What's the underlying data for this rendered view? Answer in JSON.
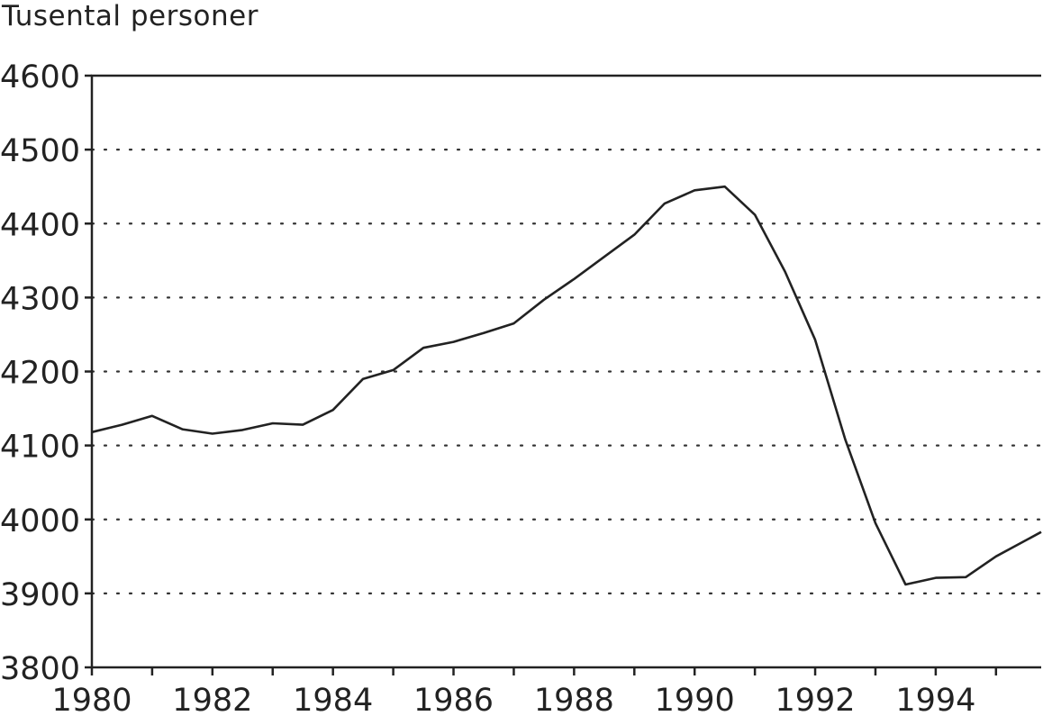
{
  "chart_data": {
    "type": "line",
    "title": "",
    "xlabel": "",
    "ylabel": "Tusental personer",
    "xlim": [
      1980,
      1995.75
    ],
    "ylim": [
      3800,
      4600
    ],
    "x_ticks": [
      1980,
      1982,
      1984,
      1986,
      1988,
      1990,
      1992,
      1994
    ],
    "x_tick_labels": [
      "1980",
      "1982",
      "1984",
      "1986",
      "1988",
      "1990",
      "1992",
      "1994"
    ],
    "y_ticks": [
      3800,
      3900,
      4000,
      4100,
      4200,
      4300,
      4400,
      4500,
      4600
    ],
    "y_tick_labels": [
      "3800",
      "3900",
      "4000",
      "4100",
      "4200",
      "4300",
      "4400",
      "4500",
      "4600"
    ],
    "grid": "horizontal dotted",
    "legend": "none",
    "series": [
      {
        "x": [
          1980.0,
          1980.5,
          1981.0,
          1981.5,
          1982.0,
          1982.5,
          1983.0,
          1983.5,
          1984.0,
          1984.5,
          1985.0,
          1985.5,
          1986.0,
          1986.5,
          1987.0,
          1987.5,
          1988.0,
          1988.5,
          1989.0,
          1989.5,
          1990.0,
          1990.5,
          1991.0,
          1991.5,
          1992.0,
          1992.5,
          1993.0,
          1993.5,
          1994.0,
          1994.5,
          1995.0,
          1995.75
        ],
        "values": [
          4118,
          4128,
          4140,
          4122,
          4116,
          4121,
          4130,
          4128,
          4148,
          4190,
          4202,
          4232,
          4240,
          4252,
          4265,
          4297,
          4325,
          4355,
          4385,
          4427,
          4445,
          4450,
          4412,
          4335,
          4243,
          4108,
          3995,
          3912,
          3921,
          3922,
          3950,
          3983
        ]
      }
    ]
  }
}
